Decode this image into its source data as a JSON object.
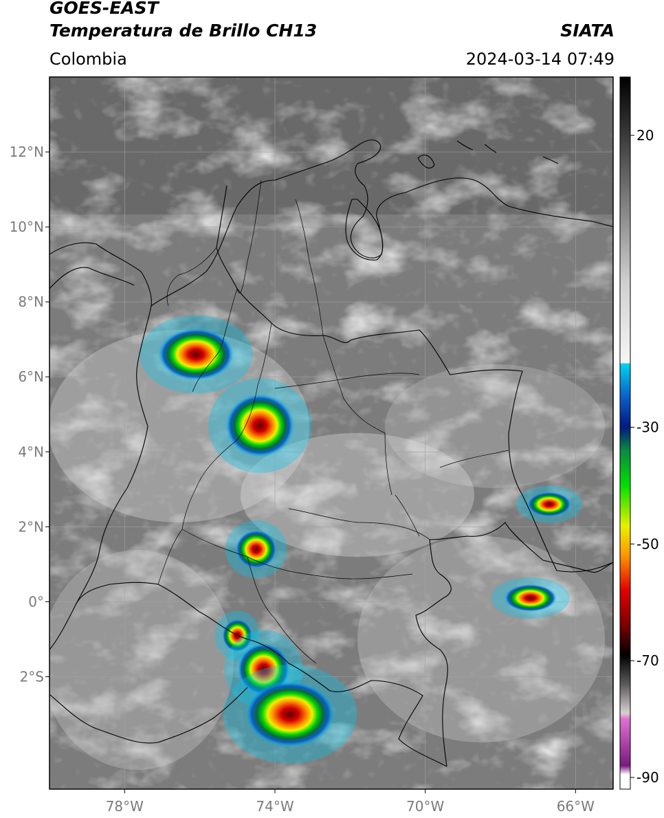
{
  "header": {
    "satellite": "GOES-EAST",
    "product": "Temperatura de Brillo CH13",
    "region": "Colombia",
    "organization": "SIATA",
    "timestamp": "2024-03-14 07:49"
  },
  "map": {
    "lon_range": [
      -80,
      -65
    ],
    "lat_range": [
      -5,
      14
    ],
    "x_ticks": [
      {
        "value": -78,
        "label": "78°W"
      },
      {
        "value": -74,
        "label": "74°W"
      },
      {
        "value": -70,
        "label": "70°W"
      },
      {
        "value": -66,
        "label": "66°W"
      }
    ],
    "y_ticks": [
      {
        "value": 12,
        "label": "12°N"
      },
      {
        "value": 10,
        "label": "10°N"
      },
      {
        "value": 8,
        "label": "8°N"
      },
      {
        "value": 6,
        "label": "6°N"
      },
      {
        "value": 4,
        "label": "4°N"
      },
      {
        "value": 2,
        "label": "2°N"
      },
      {
        "value": 0,
        "label": "0°"
      },
      {
        "value": -2,
        "label": "2°S"
      }
    ],
    "cloud_tops": [
      {
        "lon": -76.1,
        "lat": 6.6
      },
      {
        "lon": -74.4,
        "lat": 4.7
      },
      {
        "lon": -74.5,
        "lat": 1.4
      },
      {
        "lon": -75.0,
        "lat": -0.9
      },
      {
        "lon": -74.3,
        "lat": -1.8
      },
      {
        "lon": -73.6,
        "lat": -3.0
      },
      {
        "lon": -66.7,
        "lat": 2.6
      },
      {
        "lon": -67.2,
        "lat": 0.1
      }
    ]
  },
  "colorbar": {
    "range": [
      -92,
      30
    ],
    "ticks": [
      {
        "value": 20,
        "label": "20"
      },
      {
        "value": -30,
        "label": "-30"
      },
      {
        "value": -50,
        "label": "-50"
      },
      {
        "value": -70,
        "label": "-70"
      },
      {
        "value": -90,
        "label": "-90"
      }
    ],
    "stops": [
      {
        "value": 30,
        "color": "#000000"
      },
      {
        "value": 20,
        "color": "#3a3a3a"
      },
      {
        "value": -5,
        "color": "#cfcfcf"
      },
      {
        "value": -19,
        "color": "#f6f6f6"
      },
      {
        "value": -19.1,
        "color": "#00d4f0"
      },
      {
        "value": -25,
        "color": "#0a5cc8"
      },
      {
        "value": -30,
        "color": "#001a80"
      },
      {
        "value": -34,
        "color": "#0a8a40"
      },
      {
        "value": -40,
        "color": "#00e000"
      },
      {
        "value": -47,
        "color": "#e8f000"
      },
      {
        "value": -52,
        "color": "#ff9400"
      },
      {
        "value": -58,
        "color": "#e00000"
      },
      {
        "value": -64,
        "color": "#7a0000"
      },
      {
        "value": -69,
        "color": "#000000"
      },
      {
        "value": -74,
        "color": "#5a5a5a"
      },
      {
        "value": -79,
        "color": "#d8d0d0"
      },
      {
        "value": -80,
        "color": "#e070d0"
      },
      {
        "value": -88,
        "color": "#7a1a80"
      },
      {
        "value": -89.5,
        "color": "#ffffff"
      },
      {
        "value": -92,
        "color": "#ffffff"
      }
    ]
  }
}
